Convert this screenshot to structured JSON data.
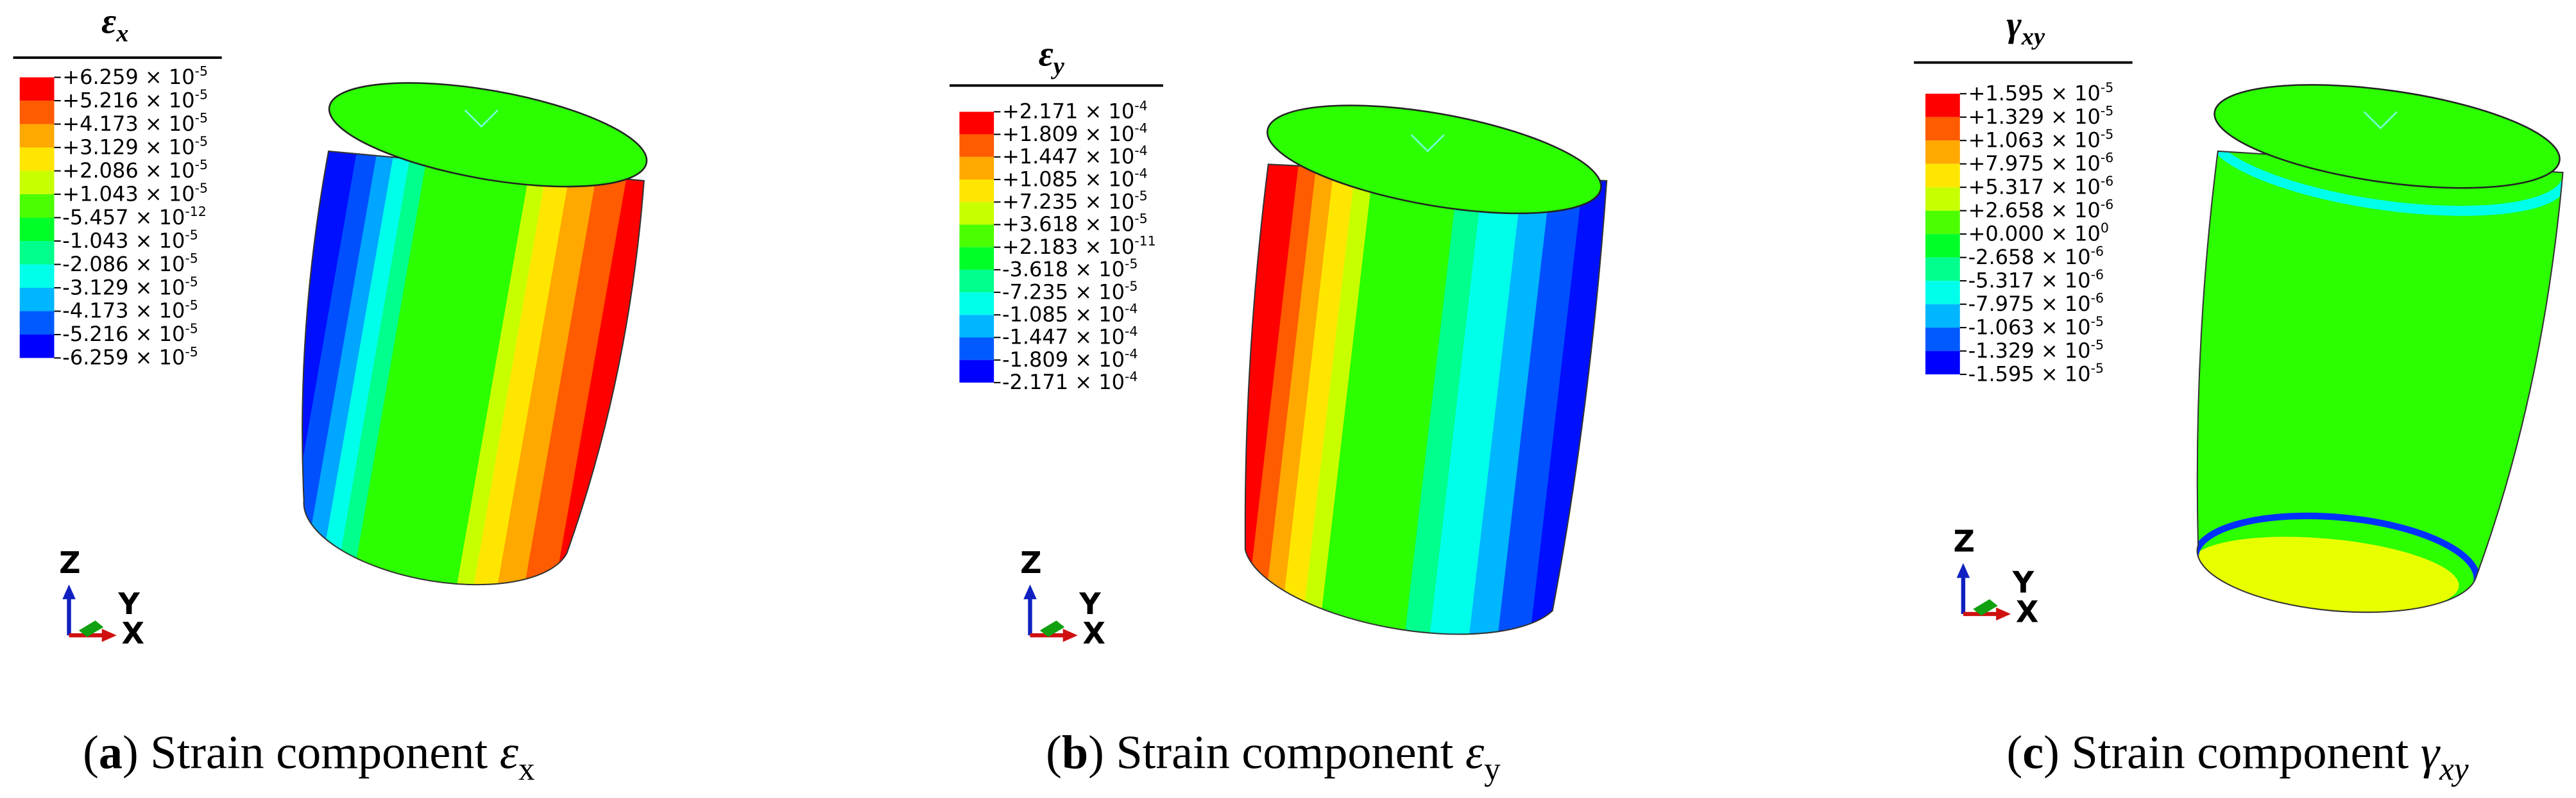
{
  "panels": [
    {
      "legend": {
        "title": [
          {
            "text": "ε",
            "style": "normal"
          },
          {
            "text": "x",
            "style": "sub"
          }
        ],
        "labels": [
          {
            "mantissa": "+6.259 × 10",
            "exponent": "-5"
          },
          {
            "mantissa": "+5.216 × 10",
            "exponent": "-5"
          },
          {
            "mantissa": "+4.173 × 10",
            "exponent": "-5"
          },
          {
            "mantissa": "+3.129 × 10",
            "exponent": "-5"
          },
          {
            "mantissa": "+2.086 × 10",
            "exponent": "-5"
          },
          {
            "mantissa": "+1.043 × 10",
            "exponent": "-5"
          },
          {
            "mantissa": "-5.457 × 10",
            "exponent": "-12"
          },
          {
            "mantissa": "-1.043 × 10",
            "exponent": "-5"
          },
          {
            "mantissa": "-2.086 × 10",
            "exponent": "-5"
          },
          {
            "mantissa": "-3.129 × 10",
            "exponent": "-5"
          },
          {
            "mantissa": "-4.173 × 10",
            "exponent": "-5"
          },
          {
            "mantissa": "-5.216 × 10",
            "exponent": "-5"
          },
          {
            "mantissa": "-6.259 × 10",
            "exponent": "-5"
          }
        ]
      },
      "axes": [
        "Z",
        "Y",
        "X"
      ],
      "caption": [
        {
          "text": "(",
          "style": "normal"
        },
        {
          "text": "a",
          "style": "bold"
        },
        {
          "text": ") Strain component ",
          "style": "normal"
        },
        {
          "text": "ε",
          "style": "italic"
        },
        {
          "text": "x",
          "style": "sub"
        }
      ]
    },
    {
      "legend": {
        "title": [
          {
            "text": "ε",
            "style": "normal"
          },
          {
            "text": "y",
            "style": "sub"
          }
        ],
        "labels": [
          {
            "mantissa": "+2.171 × 10",
            "exponent": "-4"
          },
          {
            "mantissa": "+1.809 × 10",
            "exponent": "-4"
          },
          {
            "mantissa": "+1.447 × 10",
            "exponent": "-4"
          },
          {
            "mantissa": "+1.085 × 10",
            "exponent": "-4"
          },
          {
            "mantissa": "+7.235 × 10",
            "exponent": "-5"
          },
          {
            "mantissa": "+3.618 × 10",
            "exponent": "-5"
          },
          {
            "mantissa": "+2.183 × 10",
            "exponent": "-11"
          },
          {
            "mantissa": "-3.618 × 10",
            "exponent": "-5"
          },
          {
            "mantissa": "-7.235 × 10",
            "exponent": "-5"
          },
          {
            "mantissa": "-1.085 × 10",
            "exponent": "-4"
          },
          {
            "mantissa": "-1.447 × 10",
            "exponent": "-4"
          },
          {
            "mantissa": "-1.809 × 10",
            "exponent": "-4"
          },
          {
            "mantissa": "-2.171 × 10",
            "exponent": "-4"
          }
        ]
      },
      "axes": [
        "Z",
        "Y",
        "X"
      ],
      "caption": [
        {
          "text": "(",
          "style": "normal"
        },
        {
          "text": "b",
          "style": "bold"
        },
        {
          "text": ") Strain component ",
          "style": "normal"
        },
        {
          "text": "ε",
          "style": "italic"
        },
        {
          "text": "y",
          "style": "sub"
        }
      ]
    },
    {
      "legend": {
        "title": [
          {
            "text": "γ",
            "style": "normal"
          },
          {
            "text": "xy",
            "style": "sub"
          }
        ],
        "labels": [
          {
            "mantissa": "+1.595 × 10",
            "exponent": "-5"
          },
          {
            "mantissa": "+1.329 × 10",
            "exponent": "-5"
          },
          {
            "mantissa": "+1.063 × 10",
            "exponent": "-5"
          },
          {
            "mantissa": "+7.975 × 10",
            "exponent": "-6"
          },
          {
            "mantissa": "+5.317 × 10",
            "exponent": "-6"
          },
          {
            "mantissa": "+2.658 × 10",
            "exponent": "-6"
          },
          {
            "mantissa": "+0.000 × 10",
            "exponent": "0"
          },
          {
            "mantissa": "-2.658 × 10",
            "exponent": "-6"
          },
          {
            "mantissa": "-5.317 × 10",
            "exponent": "-6"
          },
          {
            "mantissa": "-7.975 × 10",
            "exponent": "-6"
          },
          {
            "mantissa": "-1.063 × 10",
            "exponent": "-5"
          },
          {
            "mantissa": "-1.329 × 10",
            "exponent": "-5"
          },
          {
            "mantissa": "-1.595 × 10",
            "exponent": "-5"
          }
        ]
      },
      "axes": [
        "Z",
        "Y",
        "X"
      ],
      "caption": [
        {
          "text": "(",
          "style": "normal"
        },
        {
          "text": "c",
          "style": "bold"
        },
        {
          "text": ") Strain component ",
          "style": "normal"
        },
        {
          "text": "γ",
          "style": "italic"
        },
        {
          "text": "xy",
          "style": "sub-italic"
        }
      ]
    }
  ]
}
